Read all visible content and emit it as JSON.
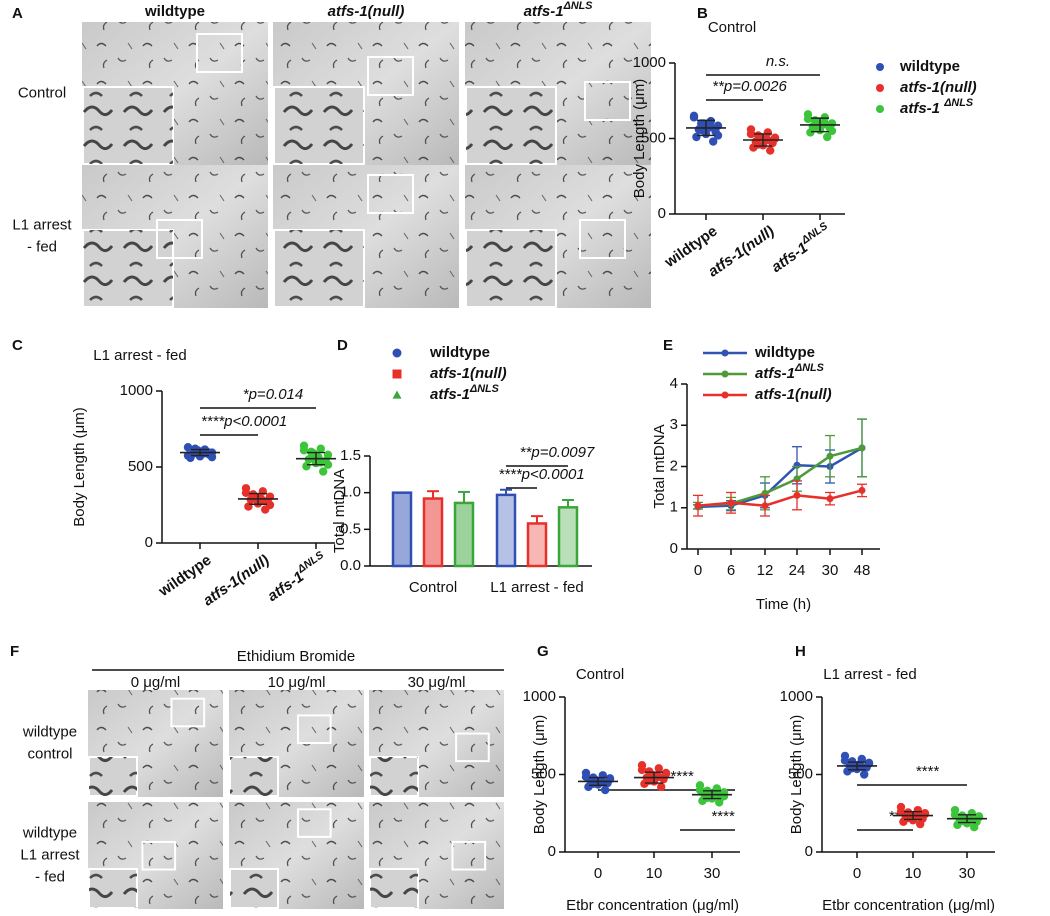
{
  "image_panels": [
    {
      "panel": "A",
      "columns": [
        "wildtype",
        "atfs-1(null)",
        "atfs-1ΔNLS"
      ],
      "rows": [
        [
          "Control"
        ],
        [
          "L1 arrest",
          "- fed"
        ]
      ]
    },
    {
      "panel": "F",
      "header": "Ethidium Bromide",
      "columns": [
        "0 μg/ml",
        "10 μg/ml",
        "30 μg/ml"
      ],
      "rows": [
        [
          "wildtype",
          "control"
        ],
        [
          "wildtype",
          "L1 arrest",
          "- fed"
        ]
      ]
    }
  ],
  "chart_data": [
    {
      "type": "dot",
      "panel": "B",
      "title": "Control",
      "ylabel": "Body Length (μm)",
      "categories": [
        "wildtype",
        "atfs-1(null)",
        "atfs-1ΔNLS"
      ],
      "colors": [
        "#2f4fb5",
        "#e8302a",
        "#3cc43a"
      ],
      "points": [
        [
          640,
          615,
          600,
          585,
          570,
          560,
          545,
          530,
          510,
          480,
          600,
          650,
          575,
          555,
          520
        ],
        [
          560,
          540,
          520,
          505,
          495,
          480,
          470,
          455,
          440,
          420,
          510,
          530,
          490,
          460,
          500
        ],
        [
          660,
          640,
          620,
          600,
          590,
          580,
          570,
          555,
          540,
          510,
          610,
          630,
          600,
          575,
          550
        ]
      ],
      "means": [
        570,
        490,
        590
      ],
      "sds": [
        50,
        40,
        45
      ],
      "legend": [
        "wildtype",
        "atfs-1(null)",
        "atfs-1 ΔNLS"
      ],
      "annotations": [
        "**p=0.0026",
        "n.s."
      ],
      "ylim": [
        0,
        1000
      ],
      "yticks": [
        0,
        500,
        1000
      ]
    },
    {
      "type": "dot",
      "panel": "C",
      "title": "L1 arrest - fed",
      "ylabel": "Body Length (μm)",
      "categories": [
        "wildtype",
        "atfs-1(null)",
        "atfs-1ΔNLS"
      ],
      "colors": [
        "#2f4fb5",
        "#e8302a",
        "#3cc43a"
      ],
      "points": [
        [
          630,
          615,
          605,
          595,
          590,
          585,
          580,
          570,
          560,
          600,
          610,
          575,
          590,
          620,
          565
        ],
        [
          360,
          340,
          320,
          305,
          295,
          285,
          275,
          260,
          240,
          220,
          300,
          330,
          280,
          310,
          250
        ],
        [
          640,
          620,
          600,
          580,
          565,
          550,
          540,
          525,
          505,
          470,
          590,
          610,
          530,
          560,
          515
        ]
      ],
      "means": [
        595,
        290,
        555
      ],
      "sds": [
        20,
        35,
        40
      ],
      "annotations": [
        "*p=0.014",
        "****p<0.0001"
      ],
      "ylim": [
        0,
        1000
      ],
      "yticks": [
        0,
        500,
        1000
      ]
    },
    {
      "type": "bar",
      "panel": "D",
      "ylabel": "Total mtDNA",
      "categories": [
        "Control",
        "L1 arrest - fed"
      ],
      "series": [
        {
          "name": "wildtype",
          "color": "#2f4fb5",
          "marker": "circle",
          "values": [
            1.0,
            0.97
          ],
          "errors": [
            0.0,
            0.07
          ]
        },
        {
          "name": "atfs-1(null)",
          "color": "#e8302a",
          "marker": "square",
          "values": [
            0.92,
            0.58
          ],
          "errors": [
            0.1,
            0.1
          ]
        },
        {
          "name": "atfs-1ΔNLS",
          "color": "#3aa63a",
          "marker": "triangle",
          "values": [
            0.86,
            0.8
          ],
          "errors": [
            0.15,
            0.1
          ]
        }
      ],
      "annotations": [
        "**p=0.0097",
        "****p<0.0001"
      ],
      "ylim": [
        0,
        1.5
      ],
      "yticks": [
        {
          "value": 0,
          "label": "0.0"
        },
        0.5,
        {
          "value": 1,
          "label": "1.0"
        },
        1.5
      ]
    },
    {
      "type": "line",
      "panel": "E",
      "ylabel": "Total mtDNA",
      "xlabel": "Time (h)",
      "categories": [
        "0",
        "6",
        "12",
        "24",
        "30",
        "48"
      ],
      "series": [
        {
          "name": "wildtype",
          "color": "#2f55b0",
          "values": [
            1.02,
            1.05,
            1.3,
            2.03,
            2.0,
            2.45
          ],
          "errors": [
            0.05,
            0.12,
            0.3,
            0.45,
            0.4,
            0.7
          ]
        },
        {
          "name": "atfs-1ΔNLS",
          "color": "#4e9a3a",
          "values": [
            1.05,
            1.1,
            1.35,
            1.7,
            2.25,
            2.45
          ],
          "errors": [
            0.08,
            0.15,
            0.4,
            0.3,
            0.5,
            0.7
          ]
        },
        {
          "name": "atfs-1(null)",
          "color": "#e8302a",
          "values": [
            1.05,
            1.12,
            1.05,
            1.3,
            1.22,
            1.42
          ],
          "errors": [
            0.25,
            0.25,
            0.25,
            0.35,
            0.15,
            0.15
          ]
        }
      ],
      "ylim": [
        0,
        4
      ],
      "yticks": [
        0,
        1,
        2,
        3,
        4
      ]
    },
    {
      "type": "dot",
      "panel": "G",
      "title": "Control",
      "ylabel": "Body Length (μm)",
      "xlabel": "Etbr concentration (μg/ml)",
      "categories": [
        "0",
        "10",
        "30"
      ],
      "colors": [
        "#2f4fb5",
        "#e8302a",
        "#3cc43a"
      ],
      "points": [
        [
          510,
          495,
          480,
          470,
          460,
          455,
          445,
          435,
          420,
          400,
          465,
          485,
          450,
          440,
          475
        ],
        [
          560,
          540,
          520,
          505,
          490,
          480,
          470,
          455,
          440,
          420,
          500,
          530,
          485,
          460,
          510
        ],
        [
          430,
          410,
          395,
          385,
          375,
          365,
          355,
          345,
          330,
          320,
          380,
          400,
          370,
          350,
          360
        ]
      ],
      "means": [
        455,
        480,
        370
      ],
      "sds": [
        25,
        35,
        25
      ],
      "annotations": [
        "****",
        "****"
      ],
      "ylim": [
        0,
        1000
      ],
      "yticks": [
        0,
        500,
        1000
      ]
    },
    {
      "type": "dot",
      "panel": "H",
      "title": "L1 arrest - fed",
      "ylabel": "Body Length (μm)",
      "xlabel": "Etbr concentration (μg/ml)",
      "categories": [
        "0",
        "10",
        "30"
      ],
      "colors": [
        "#2f4fb5",
        "#e8302a",
        "#3cc43a"
      ],
      "points": [
        [
          620,
          600,
          585,
          575,
          565,
          555,
          545,
          535,
          520,
          500,
          560,
          590,
          550,
          540,
          570
        ],
        [
          290,
          270,
          255,
          245,
          235,
          225,
          215,
          205,
          195,
          180,
          240,
          260,
          230,
          220,
          250
        ],
        [
          270,
          250,
          235,
          225,
          215,
          205,
          195,
          185,
          175,
          160,
          220,
          240,
          210,
          200,
          230
        ]
      ],
      "means": [
        555,
        235,
        215
      ],
      "sds": [
        25,
        25,
        25
      ],
      "annotations": [
        "****",
        "****"
      ],
      "ylim": [
        0,
        1000
      ],
      "yticks": [
        0,
        500,
        1000
      ]
    }
  ]
}
